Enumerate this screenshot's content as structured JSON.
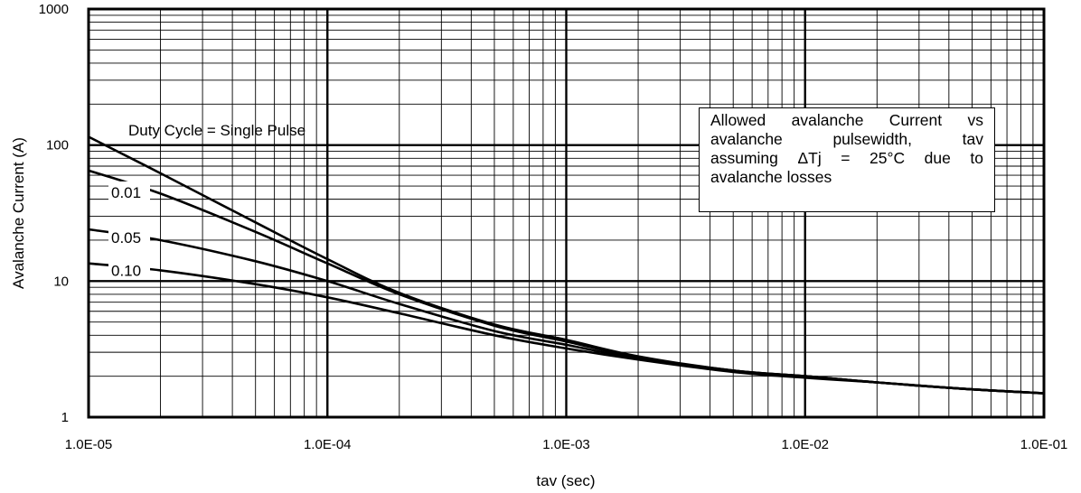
{
  "chart_data": {
    "type": "line",
    "title": "",
    "xlabel": "tav (sec)",
    "ylabel": "Avalanche Current (A)",
    "xscale": "log",
    "yscale": "log",
    "xlim": [
      1e-05,
      0.1
    ],
    "ylim": [
      1,
      1000
    ],
    "grid": true,
    "x_tick_labels": [
      "1.0E-05",
      "1.0E-04",
      "1.0E-03",
      "1.0E-02",
      "1.0E-01"
    ],
    "y_tick_labels": [
      "1",
      "10",
      "100",
      "1000"
    ],
    "annotation_top": "Duty Cycle = Single Pulse",
    "note_lines": [
      "Allowed avalanche Current vs",
      "avalanche pulsewidth, tav",
      "assuming ΔTj = 25°C due to",
      "avalanche losses"
    ],
    "series": [
      {
        "name": "Single Pulse",
        "x": [
          1e-05,
          2e-05,
          5e-05,
          0.0001,
          0.0002,
          0.0005,
          0.001,
          0.002,
          0.005,
          0.01,
          0.02,
          0.05,
          0.1
        ],
        "y": [
          115,
          62,
          27,
          14.5,
          8.2,
          4.8,
          3.7,
          2.8,
          2.2,
          2.0,
          1.8,
          1.6,
          1.5
        ]
      },
      {
        "name": "0.01",
        "x": [
          1e-05,
          2e-05,
          5e-05,
          0.0001,
          0.0002,
          0.0005,
          0.001,
          0.002,
          0.005,
          0.01,
          0.02,
          0.05,
          0.1
        ],
        "y": [
          65,
          44,
          23,
          13.5,
          8.0,
          4.7,
          3.6,
          2.75,
          2.2,
          2.0,
          1.8,
          1.6,
          1.5
        ]
      },
      {
        "name": "0.05",
        "x": [
          1e-05,
          2e-05,
          5e-05,
          0.0001,
          0.0002,
          0.0005,
          0.001,
          0.002,
          0.005,
          0.01,
          0.02,
          0.05,
          0.1
        ],
        "y": [
          24,
          20,
          14,
          10.0,
          6.8,
          4.3,
          3.4,
          2.7,
          2.2,
          2.0,
          1.8,
          1.6,
          1.5
        ]
      },
      {
        "name": "0.10",
        "x": [
          1e-05,
          2e-05,
          5e-05,
          0.0001,
          0.0002,
          0.0005,
          0.001,
          0.002,
          0.005,
          0.01,
          0.02,
          0.05,
          0.1
        ],
        "y": [
          13.5,
          12,
          9.5,
          7.6,
          5.8,
          4.0,
          3.2,
          2.65,
          2.15,
          1.95,
          1.8,
          1.6,
          1.5
        ]
      }
    ],
    "series_labels": [
      "0.01",
      "0.05",
      "0.10"
    ]
  }
}
